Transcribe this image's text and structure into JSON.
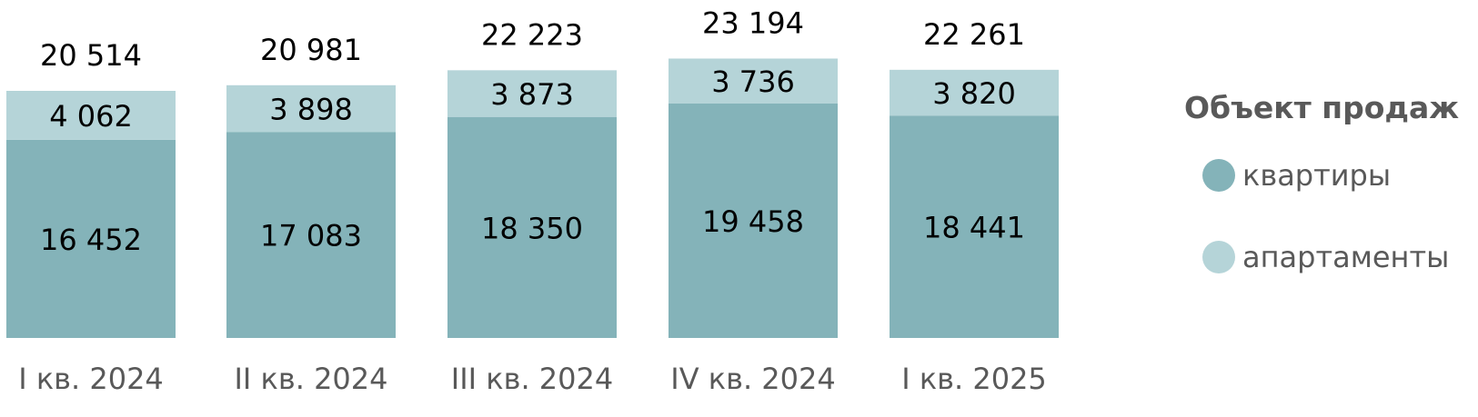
{
  "chart_data": {
    "type": "bar",
    "stacked": true,
    "categories": [
      "I кв. 2024",
      "II кв. 2024",
      "III кв. 2024",
      "IV кв. 2024",
      "I кв. 2025"
    ],
    "series": [
      {
        "name": "квартиры",
        "values": [
          16452,
          17083,
          18350,
          19458,
          18441
        ],
        "labels": [
          "16 452",
          "17 083",
          "18 350",
          "19 458",
          "18 441"
        ],
        "color": "#84b3b9"
      },
      {
        "name": "апартаменты",
        "values": [
          4062,
          3898,
          3873,
          3736,
          3820
        ],
        "labels": [
          "4 062",
          "3 898",
          "3 873",
          "3 736",
          "3 820"
        ],
        "color": "#b5d4d8"
      }
    ],
    "totals": [
      20514,
      20981,
      22223,
      23194,
      22261
    ],
    "total_labels": [
      "20 514",
      "20 981",
      "22 223",
      "23 194",
      "22 261"
    ],
    "legend": {
      "title": "Объект продаж",
      "placement": "right"
    },
    "ylim": [
      0,
      23194
    ],
    "grid": false,
    "text_color": "#595959"
  }
}
